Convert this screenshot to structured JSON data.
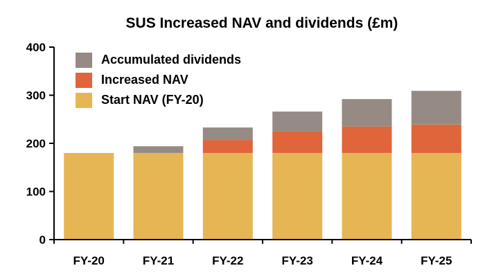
{
  "chart_data": {
    "type": "bar",
    "stacked": true,
    "title": "SUS Increased NAV and dividends (£m)",
    "xlabel": "",
    "ylabel": "",
    "categories": [
      "FY-20",
      "FY-21",
      "FY-22",
      "FY-23",
      "FY-24",
      "FY-25"
    ],
    "ylim": [
      0,
      400
    ],
    "yticks": [
      0,
      100,
      200,
      300,
      400
    ],
    "grid": false,
    "legend_position": "top-left",
    "series": [
      {
        "name": "Start NAV (FY-20)",
        "color": "#E6B655",
        "values": [
          180,
          180,
          180,
          180,
          180,
          180
        ]
      },
      {
        "name": "Increased NAV",
        "color": "#E0653A",
        "values": [
          0,
          0,
          27,
          45,
          55,
          59
        ]
      },
      {
        "name": "Accumulated dividends",
        "color": "#958B84",
        "values": [
          0,
          14,
          26,
          41,
          57,
          70
        ]
      }
    ]
  }
}
